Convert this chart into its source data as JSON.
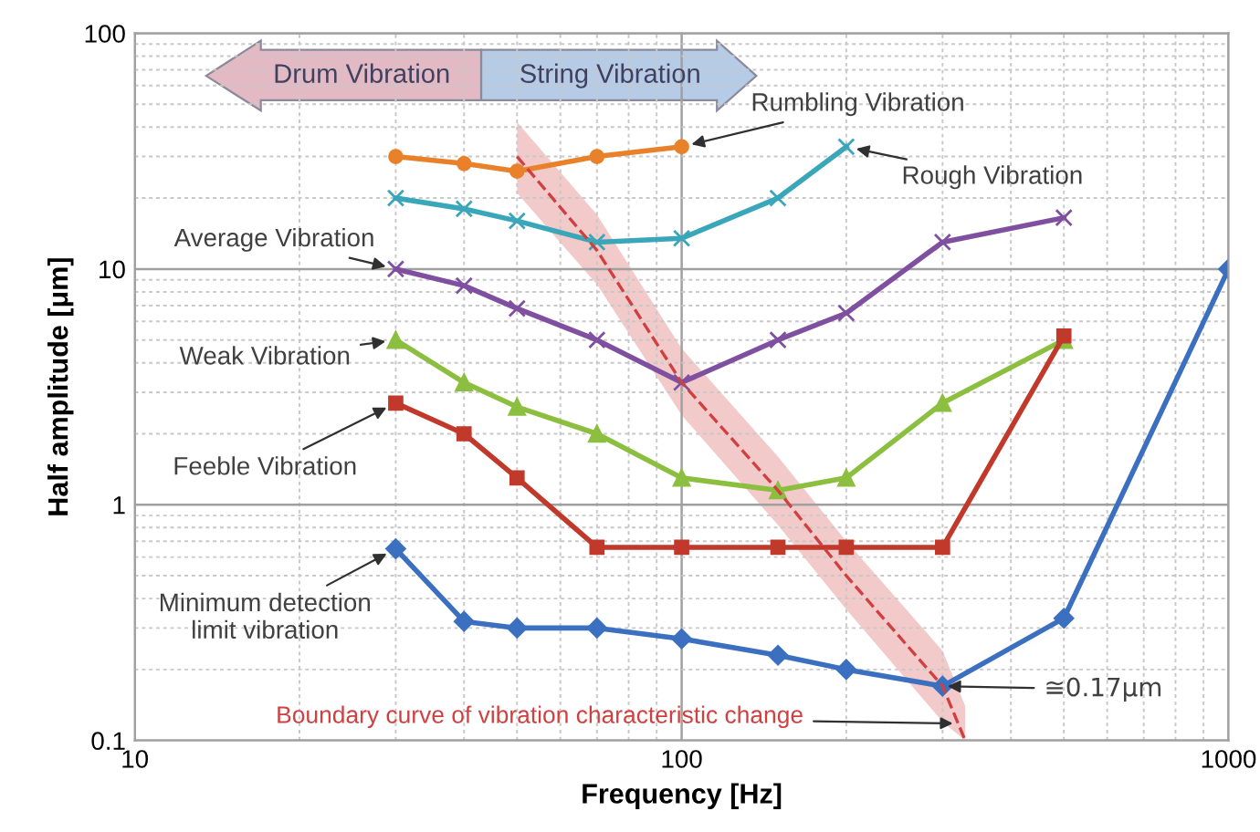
{
  "chart_data": {
    "type": "line",
    "xlabel": "Frequency [Hz]",
    "ylabel": "Half amplitude [μm]",
    "log": "xy",
    "xlim": [
      10,
      1000
    ],
    "xticks": [
      10,
      100,
      1000
    ],
    "ylim": [
      0.1,
      100
    ],
    "yticks": [
      0.1,
      1,
      10,
      100
    ],
    "grid": true,
    "line_style": "solid",
    "series": [
      {
        "name": "Rumbling Vibration",
        "color": "#e8812a",
        "marker": "circle",
        "x": [
          30,
          40,
          50,
          70,
          100
        ],
        "values": [
          30,
          28,
          26,
          30,
          33
        ]
      },
      {
        "name": "Rough Vibration",
        "color": "#3aa6b9",
        "marker": "cross",
        "x": [
          30,
          40,
          50,
          70,
          100,
          150,
          200
        ],
        "values": [
          20,
          18,
          16,
          13,
          13.5,
          20,
          33
        ]
      },
      {
        "name": "Average Vibration",
        "color": "#7f4fa0",
        "marker": "cross",
        "x": [
          30,
          40,
          50,
          70,
          100,
          150,
          200,
          300,
          500
        ],
        "values": [
          10,
          8.5,
          6.8,
          5,
          3.3,
          5,
          6.5,
          13,
          16.5
        ]
      },
      {
        "name": "Weak Vibration",
        "color": "#8cbf3f",
        "marker": "triangle",
        "x": [
          30,
          40,
          50,
          70,
          100,
          150,
          200,
          300,
          500
        ],
        "values": [
          5,
          3.3,
          2.6,
          2,
          1.3,
          1.15,
          1.3,
          2.7,
          5
        ]
      },
      {
        "name": "Feeble Vibration",
        "color": "#c0392b",
        "marker": "square",
        "x": [
          30,
          40,
          50,
          70,
          100,
          150,
          200,
          300,
          500
        ],
        "values": [
          2.7,
          2,
          1.3,
          0.66,
          0.66,
          0.66,
          0.66,
          0.66,
          5.2
        ]
      },
      {
        "name": "Minimum detection\nlimit vibration",
        "color": "#3b6fbf",
        "marker": "diamond",
        "x": [
          30,
          40,
          50,
          70,
          100,
          150,
          200,
          300,
          500,
          1000
        ],
        "values": [
          0.65,
          0.32,
          0.3,
          0.3,
          0.27,
          0.23,
          0.2,
          0.17,
          0.33,
          10
        ]
      },
      {
        "name": "Boundary curve of vibration characteristic change",
        "color": "#d04040",
        "line_style": "dashed",
        "marker": "none",
        "x": [
          50,
          70,
          100,
          150,
          200,
          300,
          330
        ],
        "values": [
          30,
          12,
          3.3,
          1.15,
          0.5,
          0.17,
          0.1
        ],
        "lower": [
          21,
          8.6,
          2.4,
          0.82,
          0.36,
          0.12,
          0.1
        ],
        "upper": [
          42,
          17,
          4.6,
          1.6,
          0.7,
          0.24,
          0.14
        ]
      }
    ],
    "annotations": [
      {
        "text": "≅0.17μm",
        "x": 300,
        "y": 0.17
      },
      "Drum Vibration",
      "String Vibration"
    ]
  }
}
